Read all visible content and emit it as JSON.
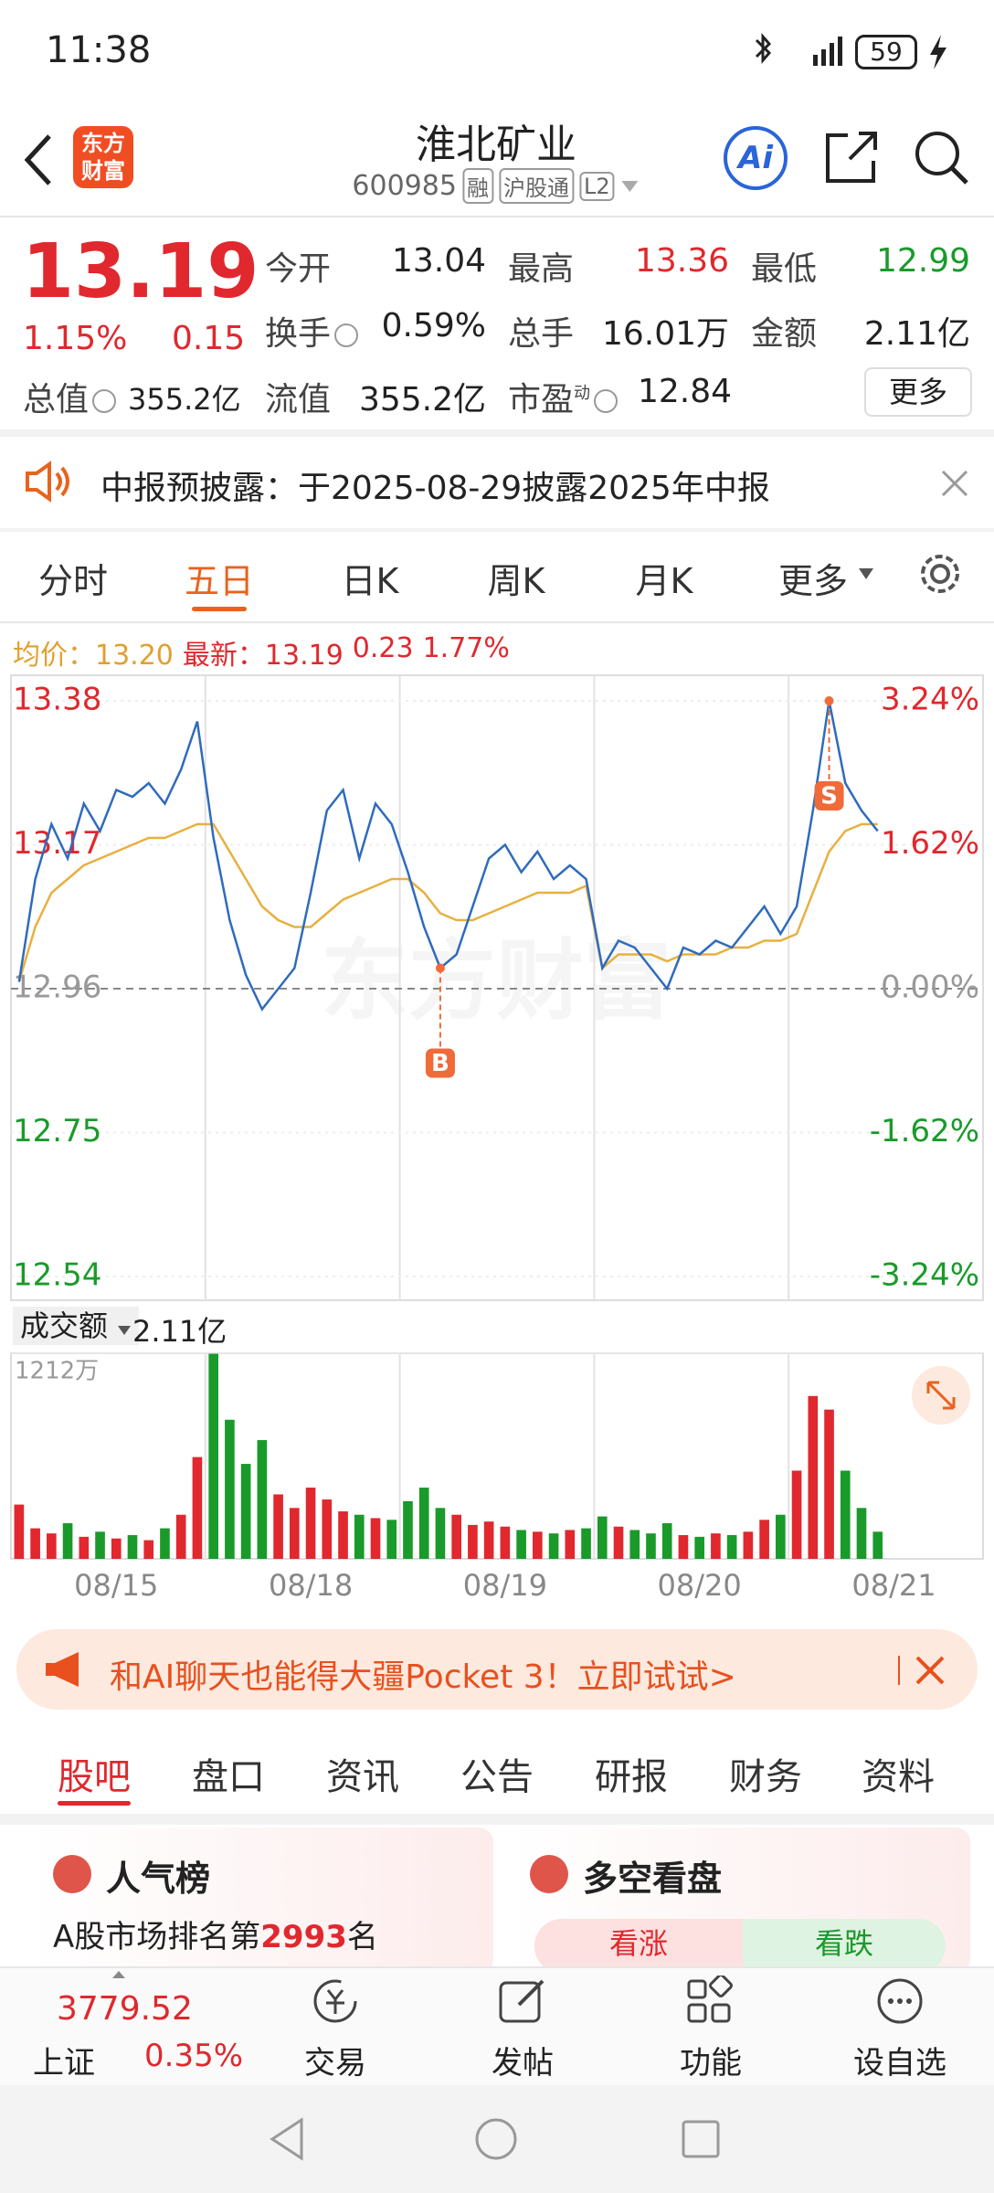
{
  "status_bar": {
    "time": "11:38",
    "battery": "59"
  },
  "header": {
    "logo": [
      "东方",
      "财富"
    ],
    "title": "淮北矿业",
    "code": "600985",
    "tags": [
      "融",
      "沪股通",
      "L2"
    ],
    "ai": "Ai"
  },
  "quote": {
    "price": "13.19",
    "change_pct": "1.15%",
    "change": "0.15",
    "stats": [
      {
        "label": "今开",
        "value": "13.04"
      },
      {
        "label": "最高",
        "value": "13.36"
      },
      {
        "label": "最低",
        "value": "12.99"
      },
      {
        "label": "换手",
        "value": "0.59%"
      },
      {
        "label": "总手",
        "value": "16.01万"
      },
      {
        "label": "金额",
        "value": "2.11亿"
      },
      {
        "label": "总值",
        "value": "355.2亿"
      },
      {
        "label": "流值",
        "value": "355.2亿"
      },
      {
        "label": "市盈",
        "superscript": "动",
        "value": "12.84"
      }
    ],
    "more": "更多"
  },
  "notice": {
    "text": "中报预披露：于2025-08-29披露2025年中报"
  },
  "chart_tabs": [
    "分时",
    "五日",
    "日K",
    "周K",
    "月K",
    "更多"
  ],
  "active_chart_tab": 1,
  "chart_legend": {
    "avg_value": "13.20",
    "latest_value": "13.19",
    "latest_change": "0.23",
    "latest_change_pct": "1.77%"
  },
  "chart_data": [
    {
      "type": "line",
      "watermark": "东方财富",
      "categories": [
        null,
        null,
        null,
        null,
        null,
        null,
        "08/15",
        null,
        null,
        null,
        null,
        null,
        null,
        null,
        null,
        null,
        null,
        null,
        "08/18",
        null,
        null,
        null,
        null,
        null,
        null,
        null,
        null,
        null,
        null,
        null,
        "08/19",
        null,
        null,
        null,
        null,
        null,
        null,
        null,
        null,
        null,
        null,
        null,
        "08/20",
        null,
        null,
        null,
        null,
        null,
        null,
        null,
        null,
        null,
        null,
        null,
        "08/21",
        null,
        null,
        null,
        null,
        null
      ],
      "series": [
        {
          "name": "均价：",
          "color": "#e8b040",
          "values": [
            12.97,
            13.05,
            13.1,
            13.12,
            13.14,
            13.15,
            13.16,
            13.17,
            13.18,
            13.18,
            13.19,
            13.2,
            13.2,
            13.16,
            13.12,
            13.08,
            13.06,
            13.05,
            13.05,
            13.07,
            13.09,
            13.1,
            13.11,
            13.12,
            13.12,
            13.1,
            13.07,
            13.06,
            13.06,
            13.07,
            13.08,
            13.09,
            13.1,
            13.1,
            13.1,
            13.11,
            12.99,
            13.01,
            13.01,
            13.01,
            13.0,
            13.01,
            13.01,
            13.01,
            13.02,
            13.02,
            13.03,
            13.03,
            13.04,
            13.1,
            13.16,
            13.19,
            13.2,
            13.2,
            null,
            null,
            null,
            null,
            null,
            null
          ]
        },
        {
          "name": "最新：",
          "color": "#2f6bbd",
          "values": [
            12.97,
            13.12,
            13.2,
            13.15,
            13.23,
            13.19,
            13.25,
            13.24,
            13.26,
            13.23,
            13.28,
            13.35,
            13.18,
            13.06,
            12.98,
            12.93,
            12.96,
            12.99,
            13.1,
            13.22,
            13.25,
            13.15,
            13.23,
            13.2,
            13.13,
            13.05,
            12.99,
            13.01,
            13.08,
            13.15,
            13.17,
            13.13,
            13.16,
            13.12,
            13.14,
            13.12,
            12.99,
            13.03,
            13.02,
            12.99,
            12.96,
            13.02,
            13.01,
            13.03,
            13.02,
            13.05,
            13.08,
            13.04,
            13.08,
            13.22,
            13.38,
            13.26,
            13.22,
            13.19,
            null,
            null,
            null,
            null,
            null,
            null
          ]
        }
      ],
      "ylim": [
        12.54,
        13.38
      ],
      "yticks": [
        13.38,
        13.17,
        12.96,
        12.75,
        12.54
      ],
      "y2lim": [
        -3.24,
        3.24
      ],
      "y2ticks": [
        {
          "value": 3.24,
          "label": "3.24%"
        },
        {
          "value": 1.62,
          "label": "1.62%"
        },
        {
          "value": 0,
          "label": "0.00%"
        },
        {
          "value": -1.62,
          "label": "-1.62%"
        },
        {
          "value": -3.24,
          "label": "-3.24%"
        }
      ],
      "annotations": [
        {
          "label": "B",
          "at": 26
        },
        {
          "label": "S",
          "at": 50
        }
      ],
      "up_color": "#e0282e",
      "down_color": "#1a9a2a",
      "flat_color": "#999999"
    },
    {
      "type": "bar",
      "values": [
        320,
        180,
        150,
        210,
        130,
        160,
        120,
        140,
        110,
        180,
        260,
        600,
        1212,
        820,
        560,
        700,
        380,
        300,
        420,
        350,
        280,
        260,
        240,
        230,
        340,
        420,
        300,
        260,
        200,
        220,
        190,
        170,
        160,
        150,
        170,
        180,
        250,
        190,
        170,
        150,
        210,
        140,
        130,
        150,
        140,
        160,
        230,
        260,
        520,
        960,
        880,
        520,
        300,
        160,
        null,
        null,
        null,
        null,
        null,
        null
      ],
      "ylim": [
        0,
        1212
      ],
      "yticks": [
        {
          "value": 1212,
          "label": "1212万"
        }
      ],
      "up_color": "#e0282e",
      "down_color": "#1a9a2a"
    }
  ],
  "volume_header": {
    "label": "成交额",
    "value": "2.11亿"
  },
  "ad": {
    "text": "和AI聊天也能得大疆Pocket 3！立即试试>"
  },
  "content_tabs": [
    "股吧",
    "盘口",
    "资讯",
    "公告",
    "研报",
    "财务",
    "资料"
  ],
  "active_content_tab": 0,
  "cards": {
    "popularity": {
      "title": "人气榜",
      "text_before": "A股市场排名第",
      "rank": "2993",
      "text_after": "名"
    },
    "sentiment": {
      "title": "多空看盘",
      "bull": "看涨",
      "bear": "看跌"
    }
  },
  "bottom_nav": {
    "index_value": "3779.52",
    "index_name": "上证",
    "index_change": "0.35%",
    "items": [
      "交易",
      "发帖",
      "功能",
      "设自选"
    ]
  }
}
